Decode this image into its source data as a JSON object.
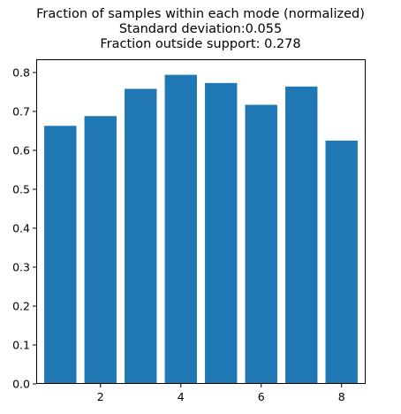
{
  "chart_data": {
    "type": "bar",
    "title_lines": [
      "Fraction of samples within each mode (normalized)",
      "Standard deviation:0.055",
      "Fraction outside support: 0.278"
    ],
    "x": [
      1,
      2,
      3,
      4,
      5,
      6,
      7,
      8
    ],
    "values": [
      0.663,
      0.688,
      0.758,
      0.794,
      0.773,
      0.717,
      0.764,
      0.625
    ],
    "bar_color": "#1f77b4",
    "xlim": [
      0.4,
      8.6
    ],
    "ylim": [
      0.0,
      0.834
    ],
    "xticks": [
      2,
      4,
      6,
      8
    ],
    "xtick_labels": [
      "2",
      "4",
      "6",
      "8"
    ],
    "yticks": [
      0.0,
      0.1,
      0.2,
      0.3,
      0.4,
      0.5,
      0.6,
      0.7,
      0.8
    ],
    "ytick_labels": [
      "0.0",
      "0.1",
      "0.2",
      "0.3",
      "0.4",
      "0.5",
      "0.6",
      "0.7",
      "0.8"
    ],
    "grid": false,
    "legend": false
  }
}
